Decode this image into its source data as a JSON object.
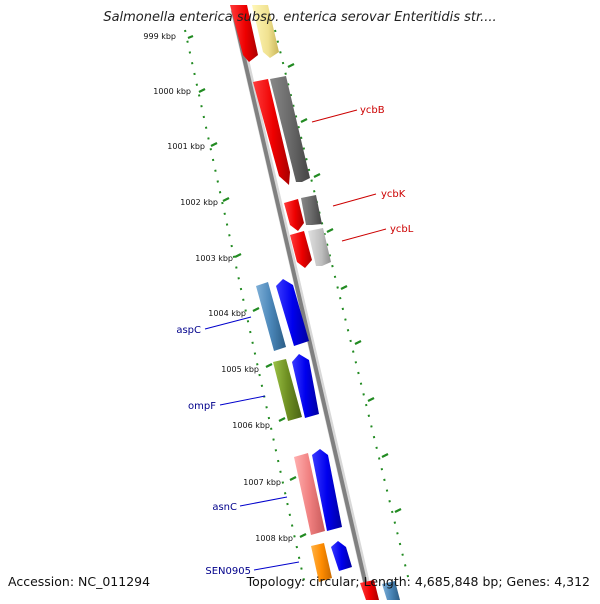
{
  "header": {
    "title": "Salmonella enterica subsp. enterica serovar Enteritidis str...."
  },
  "footer": {
    "accession": "Accession: NC_011294",
    "summary": "Topology: circular; Length: 4,685,848 bp; Genes: 4,312"
  },
  "scale": {
    "ticks": [
      "999 kbp",
      "1000 kbp",
      "1001 kbp",
      "1002 kbp",
      "1003 kbp",
      "1004 kbp",
      "1005 kbp",
      "1006 kbp",
      "1007 kbp",
      "1008 kbp"
    ]
  },
  "gene_labels": {
    "right": [
      "ycbB",
      "ycbK",
      "ycbL"
    ],
    "left": [
      "aspC",
      "ompF",
      "asnC",
      "SEN0905"
    ]
  },
  "colors": {
    "forward_label": "#cc0000",
    "reverse_label": "#00008b",
    "backbone": "#888888",
    "tick_dots": "#228b22"
  }
}
